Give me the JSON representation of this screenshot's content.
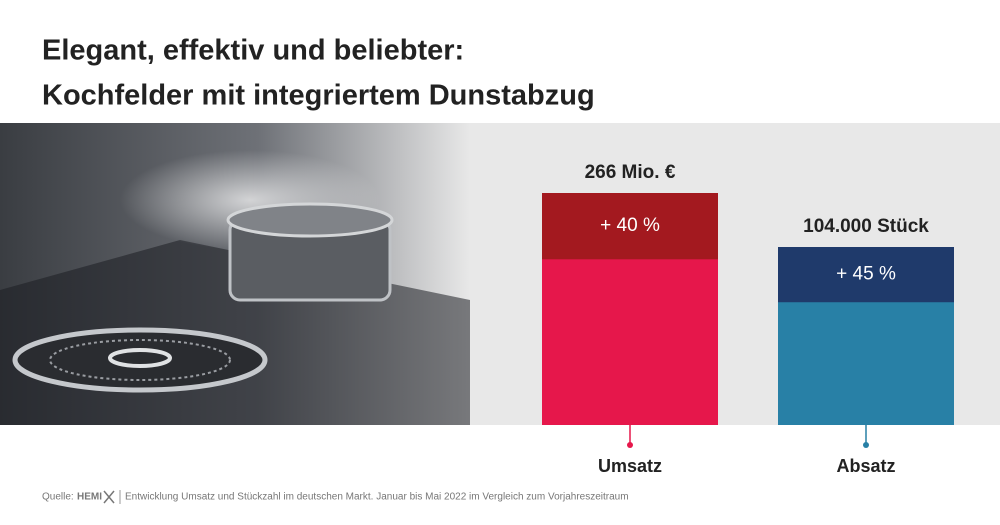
{
  "title": [
    "Elegant, effektiv und beliebter:",
    "Kochfelder mit integriertem Dunstabzug"
  ],
  "chart_data": {
    "type": "bar",
    "categories": [
      "Umsatz",
      "Absatz"
    ],
    "totals": {
      "values": [
        266000000,
        104000
      ],
      "value_labels": [
        "266 Mio. €",
        "104.000 Stück"
      ]
    },
    "growth": {
      "values": [
        40,
        45
      ],
      "value_labels": [
        "+ 40 %",
        "+ 45 %"
      ]
    },
    "colors": [
      {
        "base": "#e6174b",
        "growth": "#a3191f"
      },
      {
        "base": "#2880a6",
        "growth": "#1f3a6b"
      }
    ]
  },
  "source": {
    "label": "Quelle:",
    "brand": "HEMI",
    "text": "Entwicklung Umsatz und Stückzahl im deutschen Markt. Januar bis Mai 2022 im Vergleich zum Vorjahreszeitraum"
  }
}
